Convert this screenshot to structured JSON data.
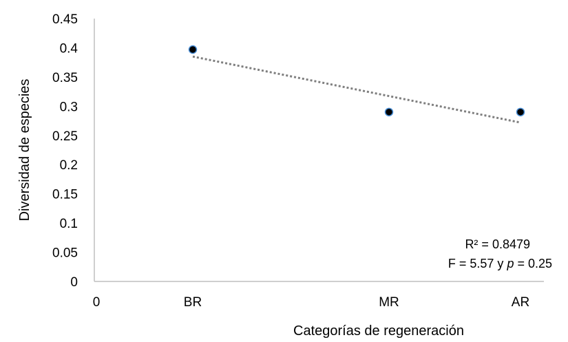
{
  "chart_data": {
    "type": "scatter",
    "title": "",
    "xlabel": "Categorías de regeneración",
    "ylabel": "Diversidad de especies",
    "x_tick_labels": [
      "0",
      "BR",
      "MR",
      "AR"
    ],
    "x_positions": [
      0,
      1,
      2,
      3
    ],
    "y_ticks": [
      "0",
      "0.05",
      "0.1",
      "0.15",
      "0.2",
      "0.25",
      "0.3",
      "0.35",
      "0.4",
      "0.45"
    ],
    "ylim": [
      0,
      0.45
    ],
    "grid": false,
    "legend": "none",
    "points": [
      {
        "x": "BR",
        "y": 0.397
      },
      {
        "x": "MR",
        "y": 0.29
      },
      {
        "x": "AR",
        "y": 0.29
      }
    ],
    "trendline": {
      "type": "linear",
      "style": "dotted",
      "start": {
        "x": "BR",
        "y": 0.385
      },
      "end": {
        "x": "AR",
        "y": 0.272
      }
    },
    "annotations": {
      "r2": "R² = 0.8479",
      "f_prefix": "F = 5.57 y ",
      "f_p": "p",
      "f_suffix": " = 0.25"
    },
    "colors": {
      "point_fill": "#000000",
      "point_edge": "#4a90d9",
      "trendline": "#7f7f7f",
      "axis": "#bfbfbf"
    }
  }
}
